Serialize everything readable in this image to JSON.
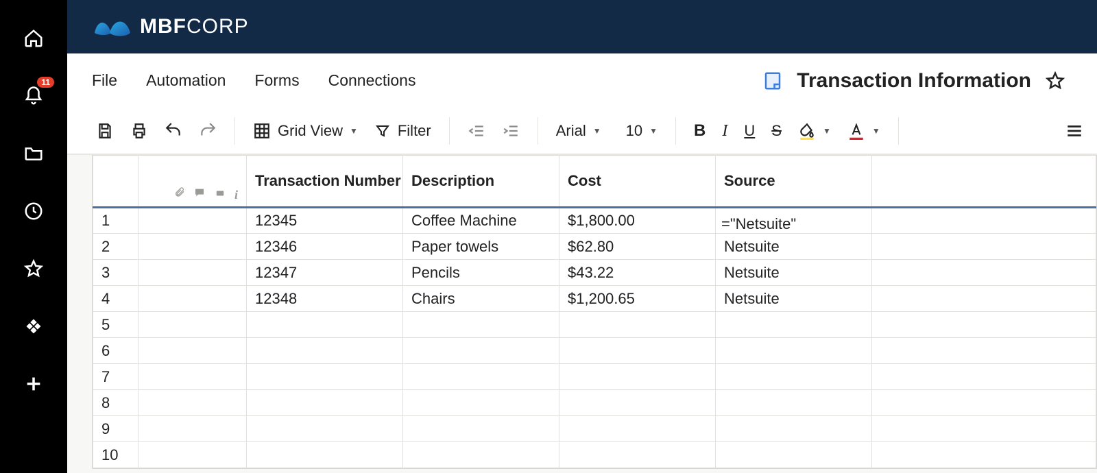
{
  "brand": {
    "bold": "MBF",
    "light": "CORP"
  },
  "notifications": {
    "count": "11"
  },
  "menus": [
    "File",
    "Automation",
    "Forms",
    "Connections"
  ],
  "doc": {
    "title": "Transaction Information"
  },
  "toolbar": {
    "grid_view_label": "Grid View",
    "filter_label": "Filter",
    "font_name": "Arial",
    "font_size": "10"
  },
  "sheet": {
    "columns": [
      "Transaction Number",
      "Description",
      "Cost",
      "Source"
    ],
    "row_count": 10,
    "editing": {
      "row": 1,
      "col": 4,
      "formula": "=\"Netsuite\""
    },
    "rows": [
      {
        "num": "1",
        "txn": "12345",
        "desc": "Coffee Machine",
        "cost": "$1,800.00",
        "source": ""
      },
      {
        "num": "2",
        "txn": "12346",
        "desc": "Paper towels",
        "cost": "$62.80",
        "source": "Netsuite"
      },
      {
        "num": "3",
        "txn": "12347",
        "desc": "Pencils",
        "cost": "$43.22",
        "source": "Netsuite"
      },
      {
        "num": "4",
        "txn": "12348",
        "desc": "Chairs",
        "cost": "$1,200.65",
        "source": "Netsuite"
      },
      {
        "num": "5",
        "txn": "",
        "desc": "",
        "cost": "",
        "source": ""
      },
      {
        "num": "6",
        "txn": "",
        "desc": "",
        "cost": "",
        "source": ""
      },
      {
        "num": "7",
        "txn": "",
        "desc": "",
        "cost": "",
        "source": ""
      },
      {
        "num": "8",
        "txn": "",
        "desc": "",
        "cost": "",
        "source": ""
      },
      {
        "num": "9",
        "txn": "",
        "desc": "",
        "cost": "",
        "source": ""
      },
      {
        "num": "10",
        "txn": "",
        "desc": "",
        "cost": "",
        "source": ""
      }
    ]
  },
  "colors": {
    "brandbar": "#132a47",
    "selection_border": "#3b7dd8",
    "row_accent": "#4a6fa5",
    "badge": "#e43e2b"
  }
}
